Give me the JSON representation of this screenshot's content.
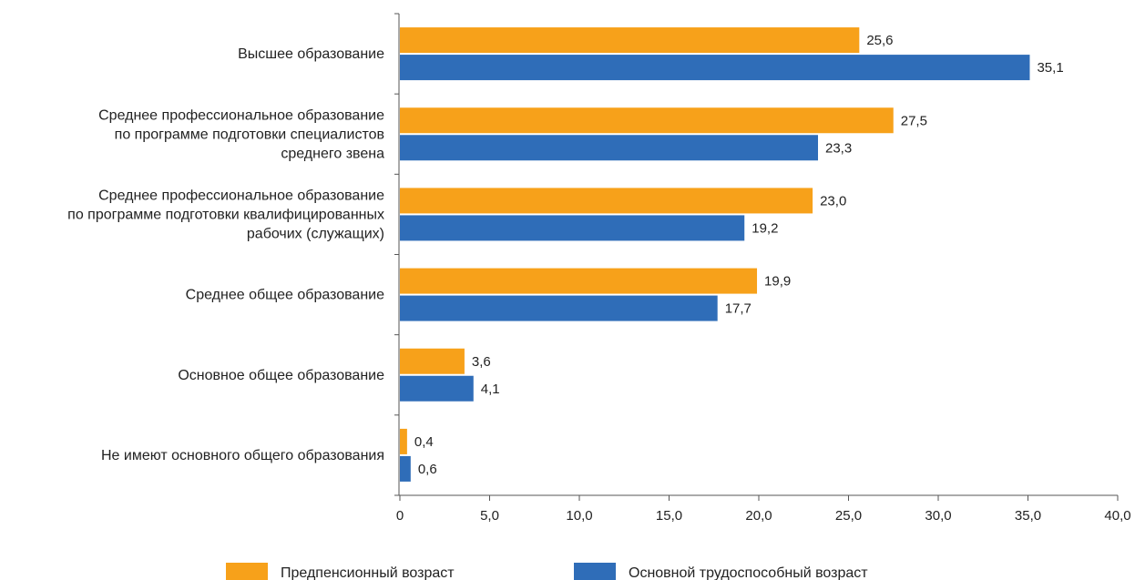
{
  "chart_data": {
    "type": "bar",
    "orientation": "horizontal",
    "categories": [
      [
        "Высшее образование"
      ],
      [
        "Среднее профессиональное образование",
        "по программе подготовки специалистов",
        "среднего звена"
      ],
      [
        "Среднее профессиональное образование",
        "по программе подготовки квалифицированных",
        "рабочих (служащих)"
      ],
      [
        "Среднее общее образование"
      ],
      [
        "Основное общее образование"
      ],
      [
        "Не имеют основного общего образования"
      ]
    ],
    "series": [
      {
        "name": "Предпенсионный возраст",
        "color": "#F7A11A",
        "values": [
          25.6,
          27.5,
          23.0,
          19.9,
          3.6,
          0.4
        ],
        "labels": [
          "25,6",
          "27,5",
          "23,0",
          "19,9",
          "3,6",
          "0,4"
        ]
      },
      {
        "name": "Основной трудоспособный возраст",
        "color": "#2F6DB8",
        "values": [
          35.1,
          23.3,
          19.2,
          17.7,
          4.1,
          0.6
        ],
        "labels": [
          "35,1",
          "23,3",
          "19,2",
          "17,7",
          "4,1",
          "0,6"
        ]
      }
    ],
    "xlim": [
      0,
      40
    ],
    "xticks": [
      0,
      5,
      10,
      15,
      20,
      25,
      30,
      35,
      40
    ],
    "xtick_labels": [
      "0",
      "5,0",
      "10,0",
      "15,0",
      "20,0",
      "25,0",
      "30,0",
      "35,0",
      "40,0"
    ],
    "grid": false,
    "legend_position": "bottom"
  }
}
